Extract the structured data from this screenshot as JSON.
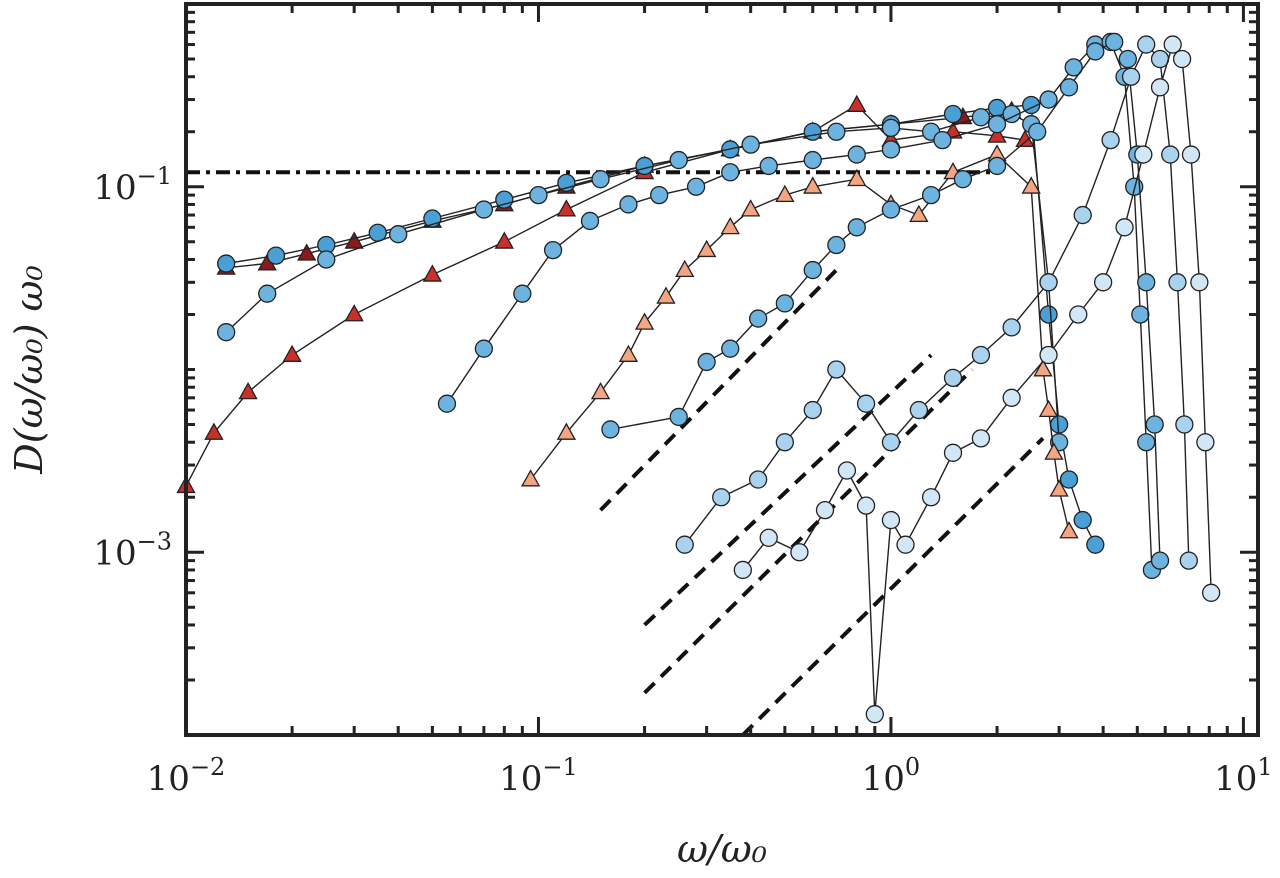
{
  "chart_data": {
    "type": "scatter",
    "xlabel": "ω/ω₀",
    "ylabel": "D(ω/ω₀) ω₀",
    "xscale": "log",
    "yscale": "log",
    "xlim": [
      0.01,
      11
    ],
    "ylim": [
      0.0001,
      1.0
    ],
    "x_ticks": [
      {
        "value": 0.01,
        "mantissa": "10",
        "exp": "−2"
      },
      {
        "value": 0.1,
        "mantissa": "10",
        "exp": "−1"
      },
      {
        "value": 1,
        "mantissa": "10",
        "exp": "0"
      },
      {
        "value": 10,
        "mantissa": "10",
        "exp": "1"
      }
    ],
    "y_ticks": [
      {
        "value": 0.1,
        "mantissa": "10",
        "exp": "−1"
      },
      {
        "value": 0.001,
        "mantissa": "10",
        "exp": "−3"
      }
    ],
    "grid": false,
    "legend": "none",
    "colors": {
      "blue_dark": "#4a9fd4",
      "blue_mid": "#6cb3e0",
      "blue_light": "#a9d2ee",
      "blue_pale": "#d2e7f6",
      "red_dark": "#c9302c",
      "red_light": "#f4a582"
    },
    "series": [
      {
        "marker": "triangle",
        "color": "#c9302c",
        "x": [
          0.01,
          0.012,
          0.015,
          0.02,
          0.03,
          0.05,
          0.08,
          0.12,
          0.2,
          0.35,
          0.6,
          0.8,
          1.0,
          1.5,
          2.0,
          2.4
        ],
        "y": [
          0.0023,
          0.0045,
          0.0075,
          0.012,
          0.02,
          0.033,
          0.05,
          0.075,
          0.12,
          0.16,
          0.2,
          0.28,
          0.18,
          0.2,
          0.19,
          0.18
        ]
      },
      {
        "marker": "triangle",
        "color": "#8b1a1a",
        "x": [
          0.013,
          0.017,
          0.022,
          0.03,
          0.05,
          0.08,
          0.12,
          0.2,
          0.35,
          0.6,
          1.0,
          1.6,
          2.2
        ],
        "y": [
          0.036,
          0.038,
          0.043,
          0.05,
          0.065,
          0.08,
          0.1,
          0.13,
          0.16,
          0.2,
          0.22,
          0.24,
          0.26
        ]
      },
      {
        "marker": "circle",
        "color": "#4a9fd4",
        "x": [
          0.013,
          0.018,
          0.025,
          0.035,
          0.05,
          0.08,
          0.12,
          0.2,
          0.35,
          0.6,
          1.0,
          1.5,
          2.0,
          2.5,
          2.8,
          3.0,
          3.2,
          3.5,
          3.8
        ],
        "y": [
          0.038,
          0.042,
          0.048,
          0.056,
          0.067,
          0.085,
          0.105,
          0.13,
          0.16,
          0.2,
          0.22,
          0.25,
          0.27,
          0.28,
          0.02,
          0.005,
          0.0025,
          0.0015,
          0.0011
        ]
      },
      {
        "marker": "circle",
        "color": "#6cb3e0",
        "x": [
          0.013,
          0.017,
          0.025,
          0.04,
          0.07,
          0.1,
          0.15,
          0.25,
          0.4,
          0.7,
          1.0,
          1.3,
          1.8,
          2.2,
          2.5,
          2.8,
          3.0
        ],
        "y": [
          0.016,
          0.026,
          0.04,
          0.055,
          0.075,
          0.09,
          0.11,
          0.14,
          0.17,
          0.2,
          0.21,
          0.2,
          0.24,
          0.25,
          0.22,
          0.03,
          0.004
        ]
      },
      {
        "marker": "triangle",
        "color": "#f4a582",
        "x": [
          0.095,
          0.12,
          0.15,
          0.18,
          0.2,
          0.23,
          0.26,
          0.3,
          0.35,
          0.4,
          0.5,
          0.6,
          0.8,
          1.0,
          1.2,
          1.5,
          2.0,
          2.5,
          2.7,
          2.8,
          2.9,
          3.0,
          3.2
        ],
        "y": [
          0.0025,
          0.0045,
          0.0075,
          0.012,
          0.018,
          0.025,
          0.035,
          0.045,
          0.06,
          0.075,
          0.09,
          0.1,
          0.11,
          0.08,
          0.07,
          0.12,
          0.15,
          0.1,
          0.01,
          0.006,
          0.0035,
          0.0022,
          0.0013
        ]
      },
      {
        "marker": "circle",
        "color": "#6cb3e0",
        "x": [
          0.055,
          0.07,
          0.09,
          0.11,
          0.14,
          0.18,
          0.22,
          0.28,
          0.35,
          0.45,
          0.6,
          0.8,
          1.0,
          1.4,
          2.0,
          2.8,
          3.3,
          3.8,
          4.2,
          4.6,
          4.9,
          5.1,
          5.3,
          5.5
        ],
        "y": [
          0.0065,
          0.013,
          0.026,
          0.045,
          0.065,
          0.08,
          0.09,
          0.1,
          0.12,
          0.13,
          0.14,
          0.15,
          0.16,
          0.18,
          0.22,
          0.3,
          0.45,
          0.6,
          0.62,
          0.4,
          0.1,
          0.02,
          0.004,
          0.0008
        ]
      },
      {
        "marker": "circle",
        "color": "#6cb3e0",
        "x": [
          0.16,
          0.25,
          0.3,
          0.35,
          0.42,
          0.5,
          0.6,
          0.7,
          0.8,
          1.0,
          1.3,
          1.6,
          2.0,
          2.6,
          3.2,
          3.8,
          4.3,
          4.7,
          5.0,
          5.3,
          5.6,
          5.8
        ],
        "y": [
          0.0047,
          0.0055,
          0.011,
          0.013,
          0.019,
          0.023,
          0.035,
          0.048,
          0.06,
          0.075,
          0.09,
          0.11,
          0.13,
          0.2,
          0.35,
          0.55,
          0.62,
          0.5,
          0.15,
          0.03,
          0.005,
          0.0009
        ]
      },
      {
        "marker": "circle",
        "color": "#a9d2ee",
        "x": [
          0.26,
          0.33,
          0.42,
          0.5,
          0.6,
          0.7,
          0.85,
          1.0,
          1.2,
          1.5,
          1.8,
          2.2,
          2.8,
          3.5,
          4.2,
          4.8,
          5.3,
          5.8,
          6.2,
          6.5,
          6.8,
          7.0
        ],
        "y": [
          0.0011,
          0.002,
          0.0025,
          0.004,
          0.006,
          0.01,
          0.0065,
          0.004,
          0.006,
          0.009,
          0.012,
          0.017,
          0.03,
          0.07,
          0.18,
          0.4,
          0.6,
          0.5,
          0.15,
          0.03,
          0.005,
          0.0009
        ]
      },
      {
        "marker": "circle",
        "color": "#d2e7f6",
        "x": [
          0.38,
          0.45,
          0.55,
          0.65,
          0.75,
          0.85,
          0.9,
          1.0,
          1.1,
          1.3,
          1.5,
          1.8,
          2.2,
          2.8,
          3.4,
          4.0,
          4.6,
          5.2,
          5.8,
          6.3,
          6.7,
          7.1,
          7.5,
          7.8,
          8.1
        ],
        "y": [
          0.0008,
          0.0012,
          0.001,
          0.0017,
          0.0028,
          0.0018,
          0.00013,
          0.0015,
          0.0011,
          0.002,
          0.0035,
          0.0042,
          0.007,
          0.012,
          0.02,
          0.03,
          0.06,
          0.15,
          0.35,
          0.6,
          0.5,
          0.15,
          0.03,
          0.004,
          0.0006
        ]
      }
    ],
    "reference_lines": [
      {
        "style": "dashdot",
        "x": [
          0.01,
          2.0
        ],
        "y": [
          0.12,
          0.12
        ]
      },
      {
        "style": "dashed",
        "x": [
          0.15,
          0.7
        ],
        "y": [
          0.0017,
          0.035
        ]
      },
      {
        "style": "dashed",
        "x": [
          0.2,
          1.3
        ],
        "y": [
          0.0004,
          0.012
        ]
      },
      {
        "style": "dashed",
        "x": [
          0.2,
          1.7
        ],
        "y": [
          0.00017,
          0.01
        ]
      },
      {
        "style": "dashed",
        "x": [
          0.38,
          2.7
        ],
        "y": [
          0.0001,
          0.0042
        ]
      }
    ]
  }
}
